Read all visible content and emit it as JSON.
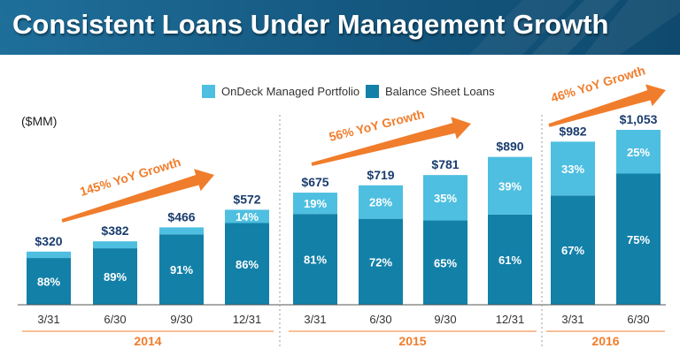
{
  "page": {
    "title": "Consistent Loans Under Management Growth"
  },
  "chart_data": {
    "type": "bar",
    "stacked": true,
    "unit_label": "($MM)",
    "categories": [
      "3/31",
      "6/30",
      "9/30",
      "12/31",
      "3/31",
      "6/30",
      "9/30",
      "12/31",
      "3/31",
      "6/30"
    ],
    "groups": [
      {
        "label": "2014",
        "start": 0,
        "end": 3
      },
      {
        "label": "2015",
        "start": 4,
        "end": 7
      },
      {
        "label": "2016",
        "start": 8,
        "end": 9
      }
    ],
    "totals": [
      320,
      382,
      466,
      572,
      675,
      719,
      781,
      890,
      982,
      1053
    ],
    "total_labels": [
      "$320",
      "$382",
      "$466",
      "$572",
      "$675",
      "$719",
      "$781",
      "$890",
      "$982",
      "$1,053"
    ],
    "series": [
      {
        "name": "Balance Sheet Loans",
        "color": "#1380a8",
        "share_pct": [
          88,
          89,
          91,
          86,
          81,
          72,
          65,
          61,
          67,
          75
        ],
        "labels": [
          "88%",
          "89%",
          "91%",
          "86%",
          "81%",
          "72%",
          "65%",
          "61%",
          "67%",
          "75%"
        ]
      },
      {
        "name": "OnDeck Managed Portfolio",
        "color": "#4ebfe0",
        "share_pct": [
          12,
          11,
          9,
          14,
          19,
          28,
          35,
          39,
          33,
          25
        ],
        "labels": [
          "",
          "",
          "",
          "14%",
          "19%",
          "28%",
          "35%",
          "39%",
          "33%",
          "25%"
        ]
      }
    ],
    "legend": {
      "position": "top",
      "entries": [
        "OnDeck Managed Portfolio",
        "Balance Sheet Loans"
      ]
    },
    "annotations": [
      {
        "text": "145% YoY Growth",
        "group": "2014"
      },
      {
        "text": "56% YoY Growth",
        "group": "2015"
      },
      {
        "text": "46% YoY Growth",
        "group": "2016"
      }
    ],
    "ylim": [
      0,
      1100
    ],
    "grid": false,
    "colors": {
      "label_text": "#1a3d6e",
      "accent": "#f07d2c",
      "axis": "#555555",
      "tick_text": "#333333",
      "divider": "#999999"
    }
  }
}
